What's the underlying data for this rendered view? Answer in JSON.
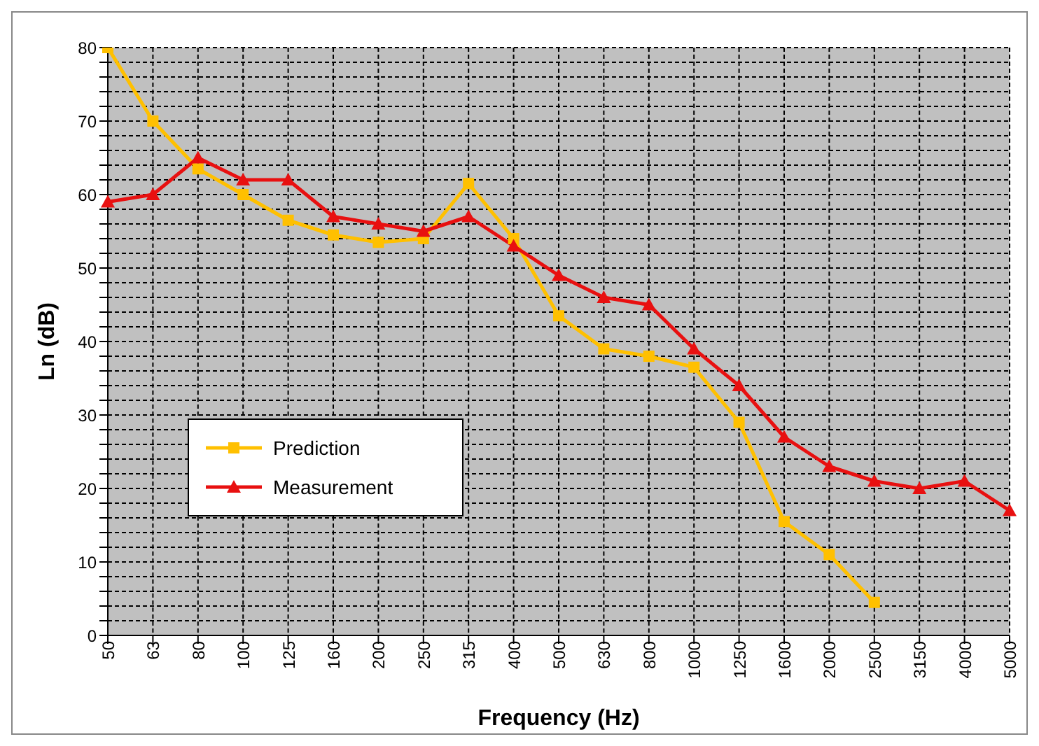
{
  "chart_data": {
    "type": "line",
    "xlabel": "Frequency (Hz)",
    "ylabel": "Ln (dB)",
    "categories": [
      "50",
      "63",
      "80",
      "100",
      "125",
      "160",
      "200",
      "250",
      "315",
      "400",
      "500",
      "630",
      "800",
      "1000",
      "1250",
      "1600",
      "2000",
      "2500",
      "3150",
      "4000",
      "5000"
    ],
    "series": [
      {
        "name": "Prediction",
        "color": "#ffc000",
        "marker": "square",
        "values": [
          80,
          70,
          63.5,
          60,
          56.5,
          54.5,
          53.5,
          54,
          61.5,
          54,
          43.5,
          39,
          38,
          36.5,
          29,
          15.5,
          11,
          4.5,
          null,
          null,
          null
        ]
      },
      {
        "name": "Measurement",
        "color": "#e81010",
        "marker": "triangle",
        "values": [
          59,
          60,
          65,
          62,
          62,
          57,
          56,
          55,
          57,
          53,
          49,
          46,
          45,
          39,
          34,
          27,
          23,
          21,
          20,
          21,
          17
        ]
      }
    ],
    "ylim": [
      0,
      80
    ],
    "yticks": [
      0,
      {
        "value": 2,
        "label": null
      },
      {
        "value": 4,
        "label": null
      },
      {
        "value": 6,
        "label": null
      },
      {
        "value": 8,
        "label": null
      },
      10,
      {
        "value": 12,
        "label": null
      },
      {
        "value": 14,
        "label": null
      },
      {
        "value": 16,
        "label": null
      },
      {
        "value": 18,
        "label": null
      },
      20,
      {
        "value": 22,
        "label": null
      },
      {
        "value": 24,
        "label": null
      },
      {
        "value": 26,
        "label": null
      },
      {
        "value": 28,
        "label": null
      },
      30,
      {
        "value": 32,
        "label": null
      },
      {
        "value": 34,
        "label": null
      },
      {
        "value": 36,
        "label": null
      },
      {
        "value": 38,
        "label": null
      },
      40,
      {
        "value": 42,
        "label": null
      },
      {
        "value": 44,
        "label": null
      },
      {
        "value": 46,
        "label": null
      },
      {
        "value": 48,
        "label": null
      },
      50,
      {
        "value": 52,
        "label": null
      },
      {
        "value": 54,
        "label": null
      },
      {
        "value": 56,
        "label": null
      },
      {
        "value": 58,
        "label": null
      },
      60,
      {
        "value": 62,
        "label": null
      },
      {
        "value": 64,
        "label": null
      },
      {
        "value": 66,
        "label": null
      },
      {
        "value": 68,
        "label": null
      },
      70,
      {
        "value": 72,
        "label": null
      },
      {
        "value": 74,
        "label": null
      },
      {
        "value": 76,
        "label": null
      },
      {
        "value": 78,
        "label": null
      },
      80
    ],
    "grid": true,
    "legend": "left",
    "line_style": "solid"
  }
}
